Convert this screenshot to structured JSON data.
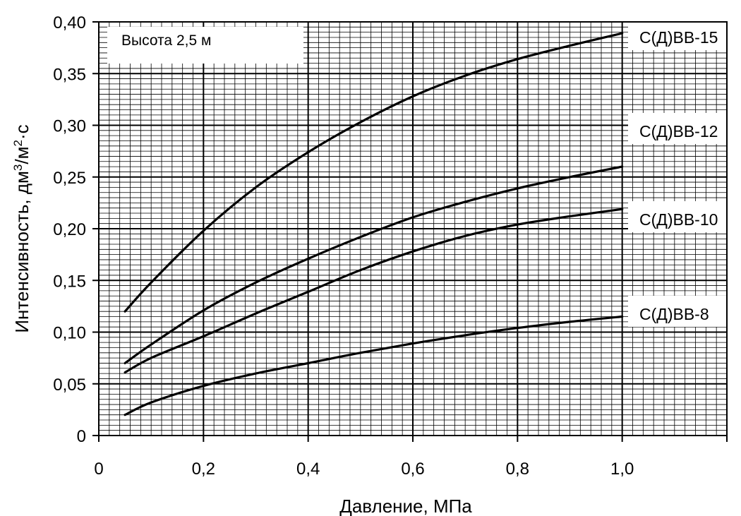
{
  "chart_data": {
    "type": "line",
    "title": "",
    "annotation": "Высота 2,5 м",
    "xlabel": "Давление, МПа",
    "ylabel": "Интенсивность, дм³/м²·с",
    "xlim": [
      0,
      1.2
    ],
    "ylim": [
      0,
      0.4
    ],
    "x_ticks": [
      0,
      0.2,
      0.4,
      0.6,
      0.8,
      1.0
    ],
    "x_tick_labels": [
      "0",
      "0,2",
      "0,4",
      "0,6",
      "0,8",
      "1,0"
    ],
    "y_ticks": [
      0,
      0.05,
      0.1,
      0.15,
      0.2,
      0.25,
      0.3,
      0.35,
      0.4
    ],
    "y_tick_labels": [
      "0",
      "0,05",
      "0,10",
      "0,15",
      "0,20",
      "0,25",
      "0,30",
      "0,35",
      "0,40"
    ],
    "grid": true,
    "series": [
      {
        "name": "С(Д)ВВ-15",
        "x": [
          0.05,
          0.1,
          0.2,
          0.3,
          0.4,
          0.5,
          0.6,
          0.7,
          0.8,
          0.9,
          1.0
        ],
        "y": [
          0.12,
          0.148,
          0.198,
          0.24,
          0.274,
          0.303,
          0.328,
          0.348,
          0.364,
          0.377,
          0.389
        ]
      },
      {
        "name": "С(Д)ВВ-12",
        "x": [
          0.05,
          0.1,
          0.2,
          0.3,
          0.4,
          0.5,
          0.6,
          0.7,
          0.8,
          0.9,
          1.0
        ],
        "y": [
          0.07,
          0.088,
          0.121,
          0.148,
          0.171,
          0.192,
          0.211,
          0.226,
          0.239,
          0.25,
          0.26
        ]
      },
      {
        "name": "С(Д)ВВ-10",
        "x": [
          0.05,
          0.1,
          0.2,
          0.3,
          0.4,
          0.5,
          0.6,
          0.7,
          0.8,
          0.9,
          1.0
        ],
        "y": [
          0.061,
          0.075,
          0.096,
          0.118,
          0.139,
          0.16,
          0.178,
          0.193,
          0.204,
          0.212,
          0.219
        ]
      },
      {
        "name": "С(Д)ВВ-8",
        "x": [
          0.05,
          0.1,
          0.2,
          0.3,
          0.4,
          0.5,
          0.6,
          0.7,
          0.8,
          0.9,
          1.0
        ],
        "y": [
          0.02,
          0.032,
          0.048,
          0.06,
          0.07,
          0.08,
          0.089,
          0.097,
          0.104,
          0.11,
          0.115
        ]
      }
    ]
  }
}
